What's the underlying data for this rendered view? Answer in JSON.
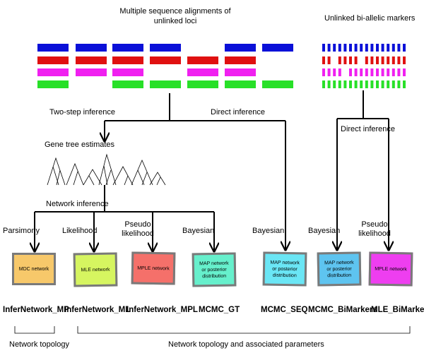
{
  "header": {
    "msa_title": "Multiple sequence alignments of\nunlinked loci",
    "biallelic_title": "Unlinked bi-allelic markers"
  },
  "colors": {
    "blue": "#0a10d8",
    "red": "#e01010",
    "magenta": "#f020f0",
    "green": "#28e028",
    "box_orange": "#f7c86a",
    "box_lime": "#d6f560",
    "box_salmon": "#f5706a",
    "box_teal": "#66f0cc",
    "box_cyan": "#6ae6f5",
    "box_skyblue": "#5ec4f0",
    "box_magenta": "#ee3ef0",
    "box_border": "#7a7a7a"
  },
  "edges": {
    "two_step": "Two-step inference",
    "direct_left": "Direct inference",
    "direct_right": "Direct inference",
    "gene_tree_estimates": "Gene tree estimates",
    "network_inference": "Network inference"
  },
  "criteria": {
    "parsimony": "Parsimony",
    "likelihood": "Likelihood",
    "pseudo_likelihood": "Pseudo\nlikelihood",
    "bayesian_gt": "Bayesian",
    "bayesian_seq": "Bayesian",
    "bayesian_bi": "Bayesian",
    "pseudo_likelihood_bi": "Pseudo\nlikelihood"
  },
  "boxes": {
    "mp": "MDC network",
    "ml": "MLE network",
    "mpl": "MPLE network",
    "gt": "MAP network\nor posterior\ndistribution",
    "seq": "MAP network\nor posterior\ndistribution",
    "bi": "MAP network\nor posterior\ndistribution",
    "mle_bi": "MPLE network"
  },
  "methods": {
    "mp": "InferNetwork_MP",
    "ml": "InferNetwork_ML",
    "mpl": "InferNetwork_MPL",
    "gt": "MCMC_GT",
    "seq": "MCMC_SEQ",
    "bi": "MCMC_BiMarkers",
    "mle_bi": "MLE_BiMarkers"
  },
  "footer": {
    "network_topology": "Network topology",
    "topology_params": "Network topology and associated parameters"
  }
}
